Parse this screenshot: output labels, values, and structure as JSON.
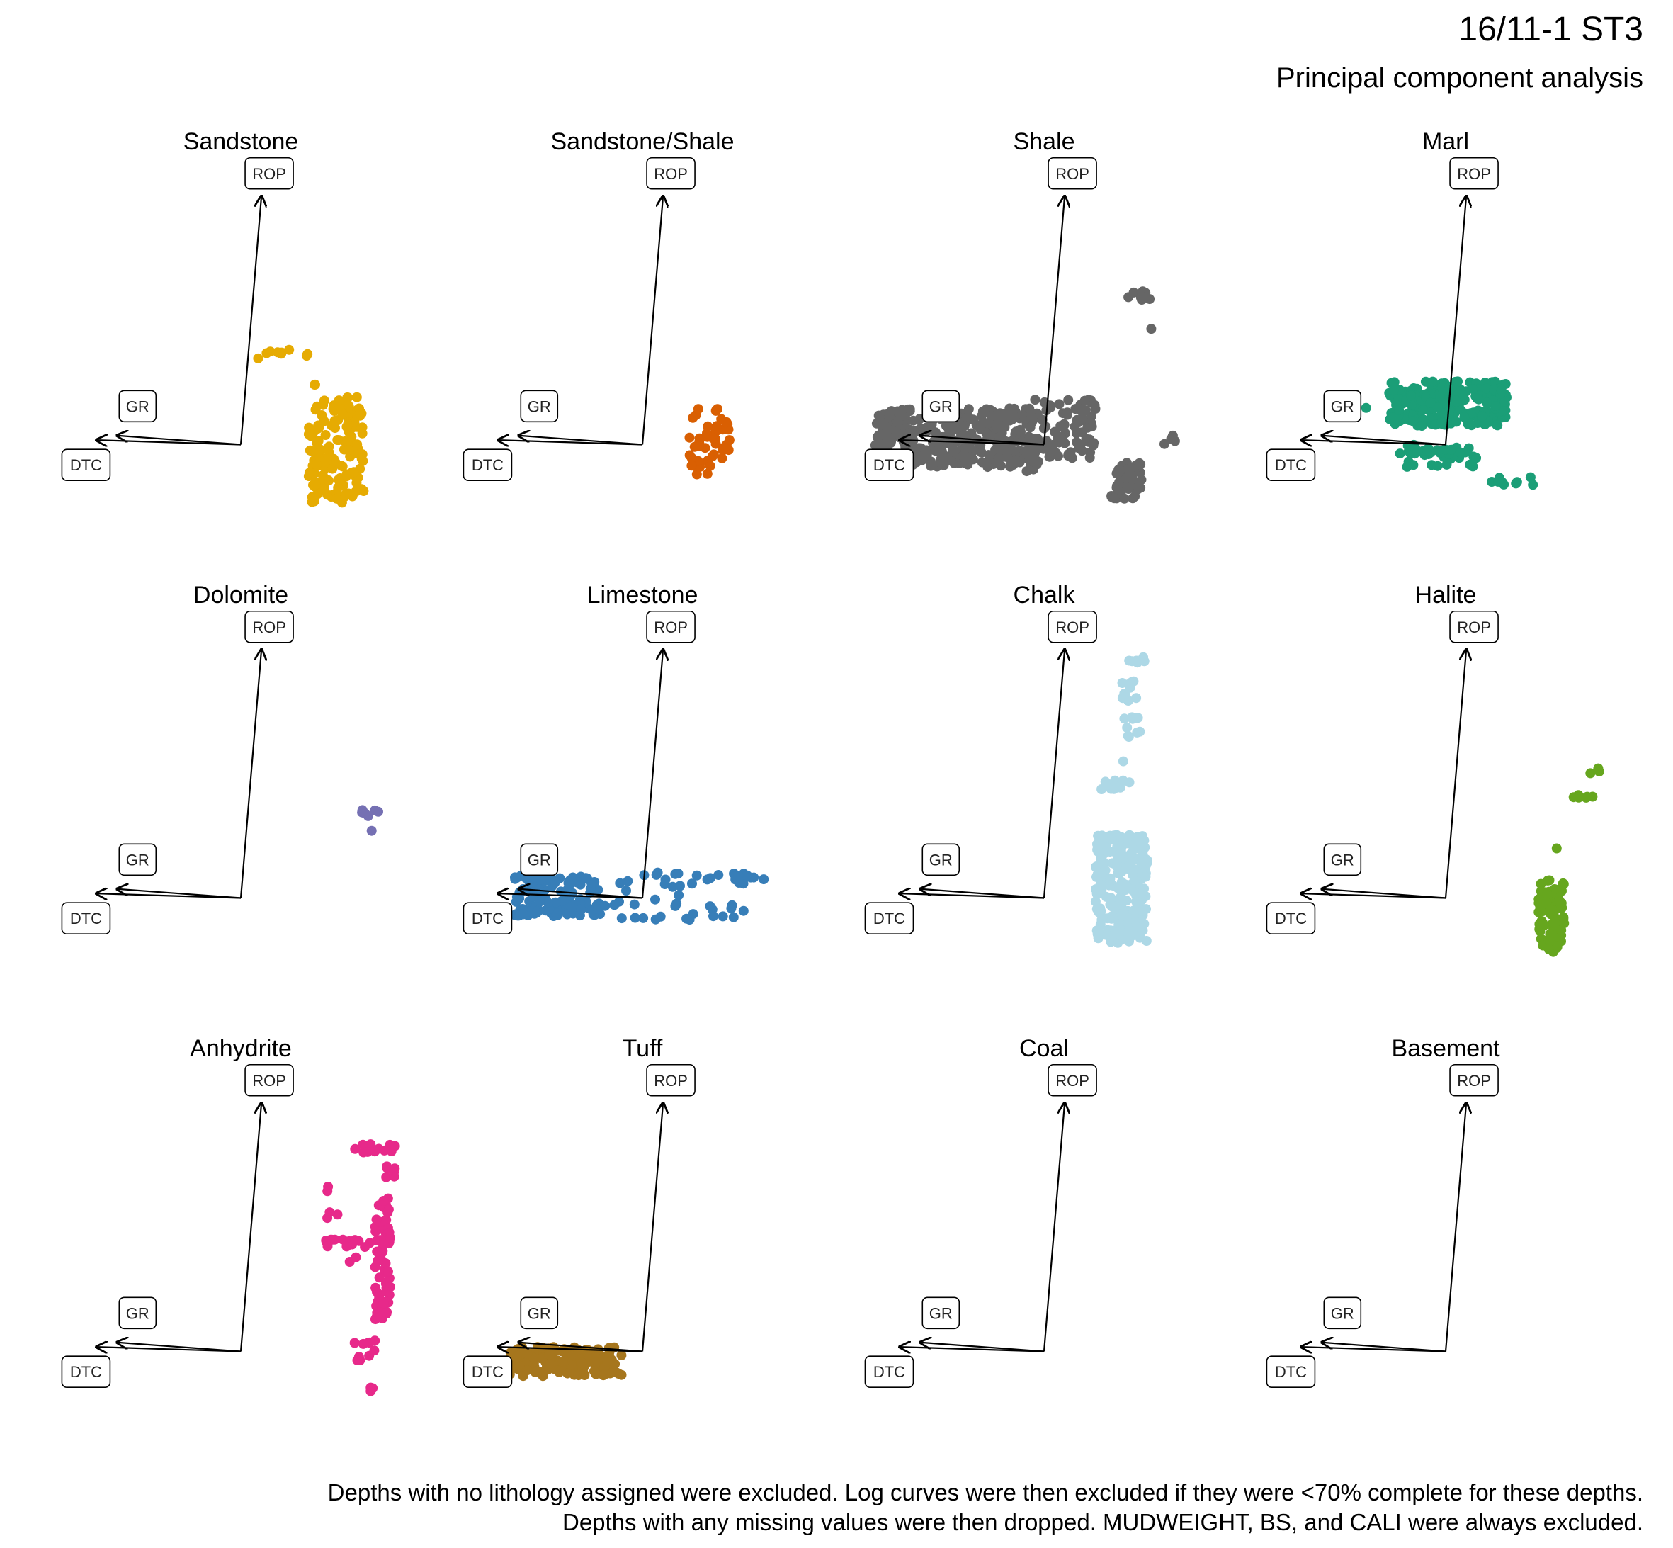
{
  "title": "16/11-1 ST3",
  "subtitle": "Principal component analysis",
  "caption": [
    "Depths with no lithology assigned were excluded. Log curves were then excluded if they were <70% complete for these depths.",
    "Depths with any missing values were then dropped. MUDWEIGHT, BS, and CALI were always excluded."
  ],
  "colors": {
    "background_bins": "#e3e3e3",
    "arrows": "#000000"
  },
  "chart_data": {
    "type": "scatter",
    "facet_by": "lithology",
    "layout": "3 rows x 4 columns",
    "axes_shown": false,
    "grid": false,
    "xlim": [
      -3.5,
      3.5
    ],
    "ylim": [
      -2.5,
      6.2
    ],
    "background": "binned density of all depths shown in light grey in every panel",
    "loadings": [
      {
        "variable": "ROP",
        "x": 0.4,
        "y": 5.5
      },
      {
        "variable": "GR",
        "x": -2.4,
        "y": 0.2
      },
      {
        "variable": "DTC",
        "x": -2.8,
        "y": 0.1
      }
    ],
    "facets": [
      {
        "name": "Sandstone",
        "color": "#E6AB02",
        "clusters": [
          {
            "x": [
              0.0,
              1.5
            ],
            "y": [
              1.9,
              2.1
            ],
            "n": 9
          },
          {
            "x": [
              1.3,
              2.4
            ],
            "y": [
              -1.3,
              0.9
            ],
            "n": 140
          },
          {
            "x": [
              1.6,
              2.3
            ],
            "y": [
              0.95,
              1.05
            ],
            "n": 6
          },
          {
            "x": [
              1.4,
              1.5
            ],
            "y": [
              1.3,
              1.5
            ],
            "n": 2
          }
        ]
      },
      {
        "name": "Sandstone/Shale",
        "color": "#D95F02",
        "clusters": [
          {
            "x": [
              0.9,
              1.7
            ],
            "y": [
              -0.8,
              0.8
            ],
            "n": 45
          }
        ]
      },
      {
        "name": "Shale",
        "color": "#666666",
        "clusters": [
          {
            "x": [
              -3.3,
              -0.2
            ],
            "y": [
              -0.5,
              0.8
            ],
            "n": 320
          },
          {
            "x": [
              -0.4,
              1.0
            ],
            "y": [
              -0.3,
              1.0
            ],
            "n": 90
          },
          {
            "x": [
              1.3,
              1.9
            ],
            "y": [
              -1.2,
              -0.4
            ],
            "n": 50
          },
          {
            "x": [
              1.6,
              2.1
            ],
            "y": [
              3.2,
              3.4
            ],
            "n": 10
          },
          {
            "x": [
              2.1,
              2.6
            ],
            "y": [
              0.0,
              0.2
            ],
            "n": 4
          },
          {
            "x": [
              2.0,
              2.1
            ],
            "y": [
              2.55,
              2.65
            ],
            "n": 1
          },
          {
            "x": [
              -0.4,
              -0.1
            ],
            "y": [
              -0.7,
              -0.2
            ],
            "n": 6
          }
        ]
      },
      {
        "name": "Marl",
        "color": "#1B9E77",
        "clusters": [
          {
            "x": [
              -1.1,
              1.2
            ],
            "y": [
              0.4,
              1.4
            ],
            "n": 260
          },
          {
            "x": [
              -0.9,
              0.6
            ],
            "y": [
              -0.5,
              0.0
            ],
            "n": 40
          },
          {
            "x": [
              0.8,
              1.7
            ],
            "y": [
              -0.9,
              -0.7
            ],
            "n": 12
          },
          {
            "x": [
              -1.6,
              -1.5
            ],
            "y": [
              0.8,
              0.9
            ],
            "n": 1
          }
        ]
      },
      {
        "name": "Dolomite",
        "color": "#7570B3",
        "clusters": [
          {
            "x": [
              2.3,
              2.7
            ],
            "y": [
              1.8,
              1.95
            ],
            "n": 6
          },
          {
            "x": [
              2.5,
              2.6
            ],
            "y": [
              1.4,
              1.5
            ],
            "n": 1
          }
        ]
      },
      {
        "name": "Limestone",
        "color": "#377EB8",
        "clusters": [
          {
            "x": [
              -2.5,
              -0.8
            ],
            "y": [
              -0.4,
              0.5
            ],
            "n": 120
          },
          {
            "x": [
              -0.8,
              1.1
            ],
            "y": [
              -0.5,
              0.6
            ],
            "n": 30
          },
          {
            "x": [
              1.0,
              2.1
            ],
            "y": [
              -0.5,
              0.6
            ],
            "n": 12
          },
          {
            "x": [
              1.6,
              2.4
            ],
            "y": [
              0.3,
              0.55
            ],
            "n": 10
          }
        ]
      },
      {
        "name": "Chalk",
        "color": "#ADD8E6",
        "clusters": [
          {
            "x": [
              1.0,
              2.0
            ],
            "y": [
              -1.0,
              1.4
            ],
            "n": 240
          },
          {
            "x": [
              1.6,
              2.0
            ],
            "y": [
              5.2,
              5.4
            ],
            "n": 6
          },
          {
            "x": [
              1.5,
              1.8
            ],
            "y": [
              4.3,
              4.8
            ],
            "n": 10
          },
          {
            "x": [
              1.5,
              1.9
            ],
            "y": [
              3.5,
              4.0
            ],
            "n": 10
          },
          {
            "x": [
              1.1,
              1.7
            ],
            "y": [
              2.4,
              2.6
            ],
            "n": 10
          },
          {
            "x": [
              1.5,
              1.6
            ],
            "y": [
              3.0,
              3.1
            ],
            "n": 1
          }
        ]
      },
      {
        "name": "Halite",
        "color": "#66A61E",
        "clusters": [
          {
            "x": [
              1.8,
              2.3
            ],
            "y": [
              -1.2,
              0.4
            ],
            "n": 90
          },
          {
            "x": [
              2.4,
              2.9
            ],
            "y": [
              2.2,
              2.3
            ],
            "n": 6
          },
          {
            "x": [
              2.8,
              3.0
            ],
            "y": [
              2.7,
              3.0
            ],
            "n": 3
          },
          {
            "x": [
              2.1,
              2.2
            ],
            "y": [
              1.05,
              1.15
            ],
            "n": 1
          }
        ]
      },
      {
        "name": "Anhydrite",
        "color": "#E7298A",
        "clusters": [
          {
            "x": [
              2.2,
              3.0
            ],
            "y": [
              4.4,
              4.6
            ],
            "n": 14
          },
          {
            "x": [
              2.8,
              3.0
            ],
            "y": [
              3.7,
              4.2
            ],
            "n": 6
          },
          {
            "x": [
              1.5,
              1.7
            ],
            "y": [
              3.5,
              3.7
            ],
            "n": 2
          },
          {
            "x": [
              2.6,
              2.9
            ],
            "y": [
              0.7,
              3.4
            ],
            "n": 70
          },
          {
            "x": [
              1.6,
              2.5
            ],
            "y": [
              2.3,
              2.5
            ],
            "n": 14
          },
          {
            "x": [
              1.6,
              1.9
            ],
            "y": [
              2.9,
              3.1
            ],
            "n": 3
          },
          {
            "x": [
              2.1,
              2.3
            ],
            "y": [
              1.9,
              2.1
            ],
            "n": 2
          },
          {
            "x": [
              2.1,
              2.6
            ],
            "y": [
              -0.3,
              0.3
            ],
            "n": 10
          },
          {
            "x": [
              2.5,
              2.6
            ],
            "y": [
              -0.9,
              -0.8
            ],
            "n": 3
          },
          {
            "x": [
              2.7,
              2.8
            ],
            "y": [
              0.7,
              0.8
            ],
            "n": 1
          }
        ]
      },
      {
        "name": "Tuff",
        "color": "#A6761D",
        "clusters": [
          {
            "x": [
              -2.6,
              -0.4
            ],
            "y": [
              -0.55,
              0.1
            ],
            "n": 150
          }
        ]
      },
      {
        "name": "Coal",
        "color": "#000000",
        "clusters": []
      },
      {
        "name": "Basement",
        "color": "#000000",
        "clusters": []
      }
    ]
  }
}
